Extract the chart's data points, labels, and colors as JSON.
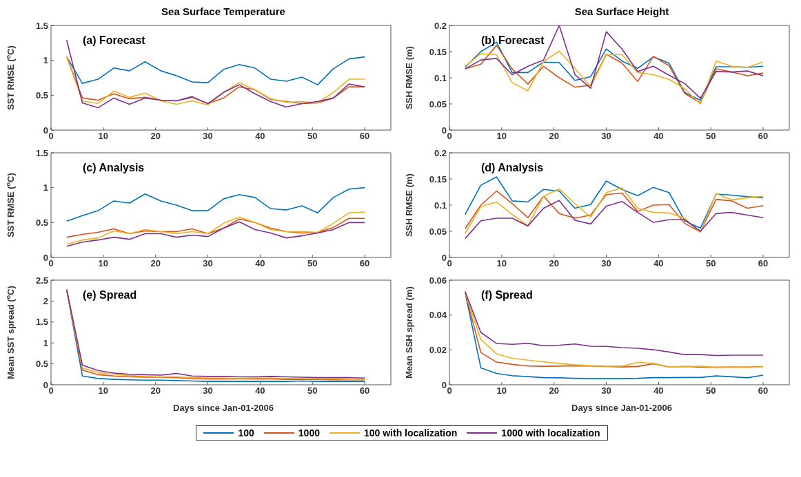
{
  "chart_data": [
    {
      "type": "line",
      "title": "Sea Surface Temperature",
      "ylabel": "SST RMSE ($^{o}$C)",
      "annotations": [
        "(a) Forecast"
      ],
      "legend": "bottom",
      "x": [
        3,
        6,
        9,
        12,
        15,
        18,
        21,
        24,
        27,
        30,
        33,
        36,
        39,
        42,
        45,
        48,
        51,
        54,
        57,
        60
      ],
      "xlim": [
        0,
        65
      ],
      "xticks": [
        0,
        10,
        20,
        30,
        40,
        50,
        60
      ],
      "ylim": [
        0,
        1.5
      ],
      "yticks": [
        0,
        0.5,
        1,
        1.5
      ],
      "series": [
        {
          "name": "100",
          "color": "#0072bd",
          "values": [
            1.05,
            0.67,
            0.73,
            0.89,
            0.85,
            0.98,
            0.85,
            0.78,
            0.69,
            0.68,
            0.87,
            0.94,
            0.89,
            0.73,
            0.7,
            0.76,
            0.65,
            0.88,
            1.02,
            1.05
          ]
        },
        {
          "name": "1000",
          "color": "#d95319",
          "values": [
            1.05,
            0.46,
            0.43,
            0.52,
            0.45,
            0.47,
            0.43,
            0.42,
            0.47,
            0.38,
            0.46,
            0.62,
            0.58,
            0.44,
            0.41,
            0.38,
            0.39,
            0.46,
            0.62,
            0.62
          ]
        },
        {
          "name": "100 with localization",
          "color": "#edb120",
          "values": [
            1.05,
            0.42,
            0.38,
            0.56,
            0.47,
            0.53,
            0.42,
            0.37,
            0.42,
            0.36,
            0.54,
            0.68,
            0.58,
            0.45,
            0.4,
            0.41,
            0.39,
            0.54,
            0.73,
            0.73
          ]
        },
        {
          "name": "1000 with localization",
          "color": "#7e2f8e",
          "values": [
            1.29,
            0.39,
            0.32,
            0.46,
            0.37,
            0.46,
            0.43,
            0.42,
            0.48,
            0.38,
            0.54,
            0.65,
            0.52,
            0.41,
            0.33,
            0.38,
            0.41,
            0.46,
            0.66,
            0.62
          ]
        }
      ]
    },
    {
      "type": "line",
      "title": "Sea Surface Height",
      "ylabel": "SSH RMSE (m)",
      "annotations": [
        "(b) Forecast"
      ],
      "x": [
        3,
        6,
        9,
        12,
        15,
        18,
        21,
        24,
        27,
        30,
        33,
        36,
        39,
        42,
        45,
        48,
        51,
        54,
        57,
        60
      ],
      "xlim": [
        0,
        65
      ],
      "xticks": [
        0,
        10,
        20,
        30,
        40,
        50,
        60
      ],
      "ylim": [
        0,
        0.2
      ],
      "yticks": [
        0,
        0.05,
        0.1,
        0.15,
        0.2
      ],
      "series": [
        {
          "color": "#0072bd",
          "values": [
            0.12,
            0.15,
            0.168,
            0.11,
            0.11,
            0.13,
            0.129,
            0.095,
            0.102,
            0.155,
            0.132,
            0.118,
            0.14,
            0.128,
            0.072,
            0.057,
            0.121,
            0.121,
            0.12,
            0.122
          ]
        },
        {
          "color": "#d95319",
          "values": [
            0.117,
            0.126,
            0.162,
            0.117,
            0.088,
            0.122,
            0.1,
            0.082,
            0.086,
            0.145,
            0.128,
            0.093,
            0.141,
            0.123,
            0.07,
            0.052,
            0.117,
            0.111,
            0.104,
            0.109
          ]
        },
        {
          "color": "#edb120",
          "values": [
            0.122,
            0.146,
            0.144,
            0.091,
            0.075,
            0.131,
            0.151,
            0.118,
            0.083,
            0.144,
            0.144,
            0.11,
            0.106,
            0.097,
            0.079,
            0.05,
            0.132,
            0.122,
            0.12,
            0.13
          ]
        },
        {
          "color": "#7e2f8e",
          "values": [
            0.117,
            0.134,
            0.137,
            0.106,
            0.122,
            0.134,
            0.2,
            0.106,
            0.08,
            0.188,
            0.155,
            0.112,
            0.122,
            0.105,
            0.089,
            0.061,
            0.112,
            0.111,
            0.113,
            0.104
          ]
        }
      ]
    },
    {
      "type": "line",
      "ylabel": "SST RMSE ($^{o}$C)",
      "annotations": [
        "(c) Analysis"
      ],
      "x": [
        3,
        6,
        9,
        12,
        15,
        18,
        21,
        24,
        27,
        30,
        33,
        36,
        39,
        42,
        45,
        48,
        51,
        54,
        57,
        60
      ],
      "xlim": [
        0,
        65
      ],
      "xticks": [
        0,
        10,
        20,
        30,
        40,
        50,
        60
      ],
      "ylim": [
        0,
        1.5
      ],
      "yticks": [
        0,
        0.5,
        1,
        1.5
      ],
      "series": [
        {
          "color": "#0072bd",
          "values": [
            0.52,
            0.6,
            0.67,
            0.81,
            0.78,
            0.91,
            0.81,
            0.75,
            0.67,
            0.67,
            0.84,
            0.9,
            0.86,
            0.7,
            0.68,
            0.74,
            0.64,
            0.86,
            0.98,
            1.0
          ]
        },
        {
          "color": "#d95319",
          "values": [
            0.29,
            0.33,
            0.36,
            0.41,
            0.34,
            0.38,
            0.37,
            0.37,
            0.41,
            0.34,
            0.42,
            0.55,
            0.5,
            0.42,
            0.37,
            0.35,
            0.36,
            0.43,
            0.56,
            0.56
          ]
        },
        {
          "color": "#edb120",
          "values": [
            0.19,
            0.25,
            0.28,
            0.38,
            0.34,
            0.4,
            0.37,
            0.34,
            0.37,
            0.34,
            0.49,
            0.58,
            0.5,
            0.4,
            0.37,
            0.37,
            0.36,
            0.49,
            0.64,
            0.65
          ]
        },
        {
          "color": "#7e2f8e",
          "values": [
            0.16,
            0.22,
            0.25,
            0.29,
            0.26,
            0.34,
            0.34,
            0.29,
            0.32,
            0.3,
            0.42,
            0.51,
            0.4,
            0.35,
            0.28,
            0.31,
            0.35,
            0.4,
            0.5,
            0.5
          ]
        }
      ]
    },
    {
      "type": "line",
      "ylabel": "SSH RMSE (m)",
      "annotations": [
        "(d) Analysis"
      ],
      "x": [
        3,
        6,
        9,
        12,
        15,
        18,
        21,
        24,
        27,
        30,
        33,
        36,
        39,
        42,
        45,
        48,
        51,
        54,
        57,
        60
      ],
      "xlim": [
        0,
        65
      ],
      "xticks": [
        0,
        10,
        20,
        30,
        40,
        50,
        60
      ],
      "ylim": [
        0,
        0.2
      ],
      "yticks": [
        0,
        0.05,
        0.1,
        0.15,
        0.2
      ],
      "series": [
        {
          "color": "#0072bd",
          "values": [
            0.082,
            0.138,
            0.154,
            0.108,
            0.106,
            0.13,
            0.127,
            0.094,
            0.101,
            0.146,
            0.13,
            0.118,
            0.134,
            0.124,
            0.07,
            0.056,
            0.121,
            0.119,
            0.116,
            0.114
          ]
        },
        {
          "color": "#d95319",
          "values": [
            0.055,
            0.1,
            0.127,
            0.103,
            0.076,
            0.117,
            0.084,
            0.075,
            0.081,
            0.12,
            0.123,
            0.088,
            0.1,
            0.101,
            0.065,
            0.049,
            0.111,
            0.108,
            0.094,
            0.099
          ]
        },
        {
          "color": "#edb120",
          "values": [
            0.046,
            0.097,
            0.106,
            0.082,
            0.061,
            0.117,
            0.131,
            0.103,
            0.077,
            0.124,
            0.133,
            0.094,
            0.086,
            0.085,
            0.075,
            0.048,
            0.122,
            0.11,
            0.114,
            0.117
          ]
        },
        {
          "color": "#7e2f8e",
          "values": [
            0.036,
            0.07,
            0.075,
            0.075,
            0.06,
            0.094,
            0.109,
            0.071,
            0.064,
            0.098,
            0.107,
            0.086,
            0.067,
            0.072,
            0.072,
            0.05,
            0.084,
            0.086,
            0.081,
            0.076
          ]
        }
      ]
    },
    {
      "type": "line",
      "xlabel": "Days since Jan-01-2006",
      "ylabel": "Mean SST spread ($^{o}$C)",
      "annotations": [
        "(e) Spread"
      ],
      "x": [
        3,
        6,
        9,
        12,
        15,
        18,
        21,
        24,
        27,
        30,
        33,
        36,
        39,
        42,
        45,
        48,
        51,
        54,
        57,
        60
      ],
      "xlim": [
        0,
        65
      ],
      "xticks": [
        0,
        10,
        20,
        30,
        40,
        50,
        60
      ],
      "ylim": [
        0,
        2.5
      ],
      "yticks": [
        0,
        0.5,
        1,
        1.5,
        2,
        2.5
      ],
      "series": [
        {
          "color": "#0072bd",
          "values": [
            2.26,
            0.21,
            0.15,
            0.13,
            0.12,
            0.11,
            0.11,
            0.1,
            0.09,
            0.08,
            0.08,
            0.08,
            0.08,
            0.08,
            0.08,
            0.09,
            0.08,
            0.08,
            0.08,
            0.08
          ]
        },
        {
          "color": "#d95319",
          "values": [
            2.26,
            0.35,
            0.24,
            0.21,
            0.19,
            0.18,
            0.18,
            0.17,
            0.15,
            0.14,
            0.14,
            0.14,
            0.14,
            0.14,
            0.13,
            0.13,
            0.13,
            0.12,
            0.12,
            0.12
          ]
        },
        {
          "color": "#edb120",
          "values": [
            2.26,
            0.4,
            0.29,
            0.25,
            0.22,
            0.2,
            0.19,
            0.19,
            0.17,
            0.16,
            0.16,
            0.15,
            0.16,
            0.16,
            0.15,
            0.15,
            0.14,
            0.14,
            0.13,
            0.13
          ]
        },
        {
          "color": "#7e2f8e",
          "values": [
            2.28,
            0.47,
            0.34,
            0.28,
            0.25,
            0.24,
            0.23,
            0.27,
            0.21,
            0.2,
            0.2,
            0.19,
            0.19,
            0.2,
            0.19,
            0.18,
            0.17,
            0.17,
            0.17,
            0.16
          ]
        }
      ]
    },
    {
      "type": "line",
      "xlabel": "Days since Jan-01-2006",
      "ylabel": "Mean SSH spread (m)",
      "annotations": [
        "(f) Spread"
      ],
      "x": [
        3,
        6,
        9,
        12,
        15,
        18,
        21,
        24,
        27,
        30,
        33,
        36,
        39,
        42,
        45,
        48,
        51,
        54,
        57,
        60
      ],
      "xlim": [
        0,
        65
      ],
      "xticks": [
        0,
        10,
        20,
        30,
        40,
        50,
        60
      ],
      "ylim": [
        0,
        0.06
      ],
      "yticks": [
        0,
        0.02,
        0.04,
        0.06
      ],
      "series": [
        {
          "color": "#0072bd",
          "values": [
            0.053,
            0.0097,
            0.0065,
            0.0052,
            0.0047,
            0.0041,
            0.004,
            0.0037,
            0.0035,
            0.0035,
            0.0035,
            0.0037,
            0.0041,
            0.0041,
            0.0042,
            0.0042,
            0.0051,
            0.0046,
            0.004,
            0.0055
          ]
        },
        {
          "color": "#d95319",
          "values": [
            0.053,
            0.0185,
            0.013,
            0.0117,
            0.0108,
            0.0106,
            0.0107,
            0.0109,
            0.0108,
            0.0105,
            0.0102,
            0.0105,
            0.0121,
            0.0102,
            0.0105,
            0.0101,
            0.01,
            0.0101,
            0.0101,
            0.0104
          ]
        },
        {
          "color": "#edb120",
          "values": [
            0.053,
            0.026,
            0.0178,
            0.0152,
            0.0141,
            0.0131,
            0.0123,
            0.0114,
            0.0109,
            0.0107,
            0.0107,
            0.0128,
            0.0123,
            0.0103,
            0.0103,
            0.0107,
            0.01,
            0.0102,
            0.01,
            0.0103
          ]
        },
        {
          "color": "#7e2f8e",
          "values": [
            0.0535,
            0.03,
            0.0237,
            0.0232,
            0.0238,
            0.0224,
            0.0227,
            0.0234,
            0.0221,
            0.022,
            0.0213,
            0.0209,
            0.0201,
            0.0188,
            0.0173,
            0.0173,
            0.0168,
            0.017,
            0.017,
            0.017
          ]
        }
      ]
    }
  ]
}
